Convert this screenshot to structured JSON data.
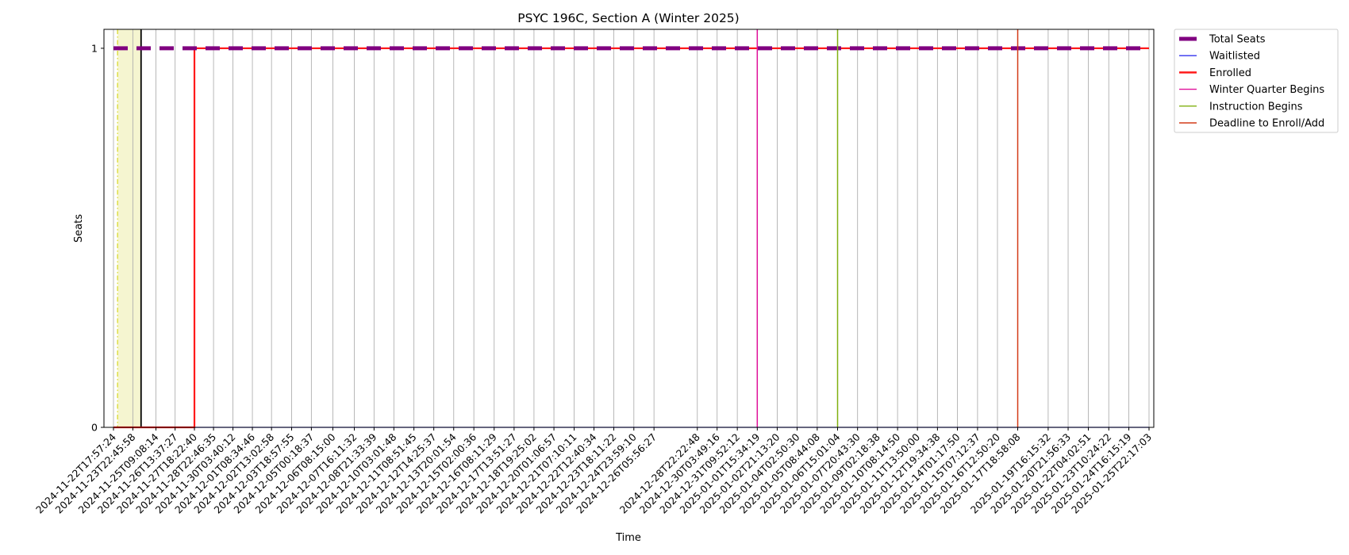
{
  "chart_data": {
    "type": "line",
    "title": "PSYC 196C, Section A (Winter 2025)",
    "xlabel": "Time",
    "ylabel": "Seats",
    "ylim": [
      0,
      1.05
    ],
    "yticks": [
      0,
      1
    ],
    "grid": "vertical",
    "legend_position": "outside-top-right",
    "x": [
      "2024-11-22T17:57:24",
      "2024-11-23T22:45:58",
      "2024-11-25T09:08:14",
      "2024-11-26T13:37:27",
      "2024-11-27T18:22:40",
      "2024-11-28T22:46:35",
      "2024-11-30T03:40:12",
      "2024-12-01T08:34:46",
      "2024-12-02T13:02:58",
      "2024-12-03T18:57:55",
      "2024-12-05T00:18:37",
      "2024-12-06T08:15:00",
      "2024-12-07T16:11:32",
      "2024-12-08T21:33:39",
      "2024-12-10T03:01:48",
      "2024-12-11T08:51:45",
      "2024-12-12T14:25:37",
      "2024-12-13T20:01:54",
      "2024-12-15T02:00:36",
      "2024-12-16T08:11:29",
      "2024-12-17T13:51:27",
      "2024-12-18T19:25:02",
      "2024-12-20T01:06:57",
      "2024-12-21T07:10:11",
      "2024-12-22T12:40:34",
      "2024-12-23T18:11:22",
      "2024-12-24T23:59:10",
      "2024-12-26T05:56:27",
      "2024-12-28T22:22:48",
      "2024-12-30T03:49:16",
      "2024-12-31T09:52:12",
      "2025-01-01T15:34:19",
      "2025-01-02T21:13:20",
      "2025-01-04T02:50:30",
      "2025-01-05T08:44:08",
      "2025-01-06T15:01:04",
      "2025-01-07T20:43:30",
      "2025-01-09T02:18:38",
      "2025-01-10T08:14:50",
      "2025-01-11T13:50:00",
      "2025-01-12T19:34:38",
      "2025-01-14T01:17:50",
      "2025-01-15T07:12:37",
      "2025-01-16T12:50:20",
      "2025-01-17T18:58:08",
      "2025-01-19T16:15:32",
      "2025-01-20T21:56:33",
      "2025-01-22T04:02:51",
      "2025-01-23T10:24:22",
      "2025-01-24T16:15:19",
      "2025-01-25T22:17:03"
    ],
    "series": [
      {
        "name": "Total Seats",
        "color": "#800080",
        "style": "dashed",
        "values": [
          1,
          1,
          1,
          1,
          1,
          1,
          1,
          1,
          1,
          1,
          1,
          1,
          1,
          1,
          1,
          1,
          1,
          1,
          1,
          1,
          1,
          1,
          1,
          1,
          1,
          1,
          1,
          1,
          1,
          1,
          1,
          1,
          1,
          1,
          1,
          1,
          1,
          1,
          1,
          1,
          1,
          1,
          1,
          1,
          1,
          1,
          1,
          1,
          1,
          1,
          1
        ]
      },
      {
        "name": "Waitlisted",
        "color": "#3333ee",
        "style": "solid",
        "values": [
          0,
          0,
          0,
          0,
          0,
          0,
          0,
          0,
          0,
          0,
          0,
          0,
          0,
          0,
          0,
          0,
          0,
          0,
          0,
          0,
          0,
          0,
          0,
          0,
          0,
          0,
          0,
          0,
          0,
          0,
          0,
          0,
          0,
          0,
          0,
          0,
          0,
          0,
          0,
          0,
          0,
          0,
          0,
          0,
          0,
          0,
          0,
          0,
          0,
          0,
          0
        ]
      },
      {
        "name": "Enrolled",
        "color": "#ff1a1a",
        "style": "solid",
        "values": [
          0,
          0,
          0,
          0,
          1,
          1,
          1,
          1,
          1,
          1,
          1,
          1,
          1,
          1,
          1,
          1,
          1,
          1,
          1,
          1,
          1,
          1,
          1,
          1,
          1,
          1,
          1,
          1,
          1,
          1,
          1,
          1,
          1,
          1,
          1,
          1,
          1,
          1,
          1,
          1,
          1,
          1,
          1,
          1,
          1,
          1,
          1,
          1,
          1,
          1,
          1
        ]
      }
    ],
    "events": [
      {
        "name": "Winter Quarter Begins",
        "color": "#e0109a",
        "x": "2025-01-01T15:34:19"
      },
      {
        "name": "Instruction Begins",
        "color": "#80b010",
        "x": "2025-01-06T15:01:04"
      },
      {
        "name": "Deadline to Enroll/Add",
        "color": "#d43b18",
        "x": "2025-01-17T18:58:08"
      }
    ],
    "shaded_period": {
      "start": "2024-11-23T00:00:00",
      "end": "2024-11-24T11:00:00",
      "color": "#f5f5d0"
    }
  }
}
